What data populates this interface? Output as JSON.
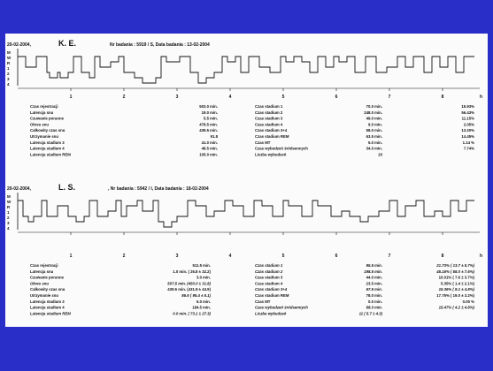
{
  "colors": {
    "background": "#2a2ec8",
    "paper": "#fbfbfb",
    "ink": "#111111"
  },
  "chart_data": [
    {
      "type": "line",
      "date": "20-02-2004,",
      "patient": "K. E.",
      "exam": "Nr badania : 5919 / S, Data badania : 13-02-2004",
      "y_labels": [
        "M",
        "W",
        "R",
        "1",
        "2",
        "3",
        "4"
      ],
      "x_ticks": [
        "1",
        "2",
        "3",
        "4",
        "5",
        "6",
        "7",
        "8"
      ],
      "xunit": "h",
      "xlim": [
        0,
        8.7
      ],
      "stage_levels": [
        "M",
        "W",
        "R",
        "1",
        "2",
        "3",
        "4"
      ],
      "hypnogram": [
        [
          0.0,
          "W"
        ],
        [
          0.15,
          "1"
        ],
        [
          0.35,
          "W"
        ],
        [
          0.55,
          "2"
        ],
        [
          0.6,
          "3"
        ],
        [
          0.75,
          "2"
        ],
        [
          0.8,
          "3"
        ],
        [
          0.95,
          "2"
        ],
        [
          1.05,
          "W"
        ],
        [
          1.2,
          "2"
        ],
        [
          1.35,
          "3"
        ],
        [
          1.45,
          "W"
        ],
        [
          1.55,
          "1"
        ],
        [
          1.75,
          "R"
        ],
        [
          1.9,
          "W"
        ],
        [
          2.0,
          "2"
        ],
        [
          2.2,
          "3"
        ],
        [
          2.35,
          "4"
        ],
        [
          2.6,
          "3"
        ],
        [
          2.7,
          "W"
        ],
        [
          2.8,
          "R"
        ],
        [
          3.05,
          "W"
        ],
        [
          3.25,
          "2"
        ],
        [
          3.4,
          "4"
        ],
        [
          3.55,
          "3"
        ],
        [
          3.7,
          "2"
        ],
        [
          3.85,
          "W"
        ],
        [
          3.95,
          "R"
        ],
        [
          4.1,
          "W"
        ],
        [
          4.2,
          "2"
        ],
        [
          4.35,
          "W"
        ],
        [
          4.55,
          "1"
        ],
        [
          4.75,
          "2"
        ],
        [
          4.95,
          "W"
        ],
        [
          5.05,
          "R"
        ],
        [
          5.2,
          "W"
        ],
        [
          5.35,
          "R"
        ],
        [
          5.5,
          "2"
        ],
        [
          5.65,
          "W"
        ],
        [
          5.8,
          "1"
        ],
        [
          5.95,
          "W"
        ],
        [
          6.05,
          "R"
        ],
        [
          6.2,
          "W"
        ],
        [
          6.35,
          "2"
        ],
        [
          6.55,
          "W"
        ],
        [
          6.75,
          "2"
        ],
        [
          6.95,
          "1"
        ],
        [
          7.15,
          "W"
        ],
        [
          7.3,
          "1"
        ],
        [
          7.45,
          "W"
        ],
        [
          7.65,
          "2"
        ],
        [
          7.8,
          "W"
        ],
        [
          7.95,
          "1"
        ],
        [
          8.1,
          "W"
        ],
        [
          8.25,
          "2"
        ],
        [
          8.4,
          "W"
        ],
        [
          8.6,
          "W"
        ]
      ],
      "stats_left": [
        [
          "Czas rejestracji",
          "503.0 min."
        ],
        [
          "Latencja snu",
          "19.0 min."
        ],
        [
          "Czuwanie poranne",
          "5.5 min."
        ],
        [
          "Okres snu",
          "478.5 min."
        ],
        [
          "Całkowity czas snu",
          "439.5 min."
        ],
        [
          "Utrzymanie snu",
          "91.8"
        ],
        [
          "Latencja stadium 3",
          "41.0 min."
        ],
        [
          "Latencja stadium 4",
          "48.5 min."
        ],
        [
          "Latencja stadium REM",
          "105.0 min."
        ]
      ],
      "stats_right": [
        [
          "Czas stadium 1",
          "70.0 min.",
          "15.93%"
        ],
        [
          "Czas stadium 2",
          "248.0 min.",
          "56.43%"
        ],
        [
          "Czas stadium 3",
          "49.0 min.",
          "11.15%"
        ],
        [
          "Czas stadium 4",
          "9.0 min.",
          "2.05%"
        ],
        [
          "Czas stadium 3+4",
          "58.0 min.",
          "13.20%"
        ],
        [
          "Czas stadium REM",
          "63.5 min.",
          "14.45%"
        ],
        [
          "Czas MT",
          "5.0 min.",
          "1.14 %"
        ],
        [
          "Czas wybudzeń śródsennych",
          "34.0 min.",
          "7.74%"
        ],
        [
          "Liczba wybudzeń",
          "20",
          ""
        ]
      ]
    },
    {
      "type": "line",
      "date": "20-02-2004,",
      "patient": "L. S.",
      "exam": ", Nr badania : 5942 / I, Data badania : 18-02-2004",
      "y_labels": [
        "M",
        "W",
        "R",
        "1",
        "2",
        "3",
        "4"
      ],
      "x_ticks": [
        "1",
        "2",
        "3",
        "4",
        "5",
        "6",
        "7",
        "8"
      ],
      "xunit": "h",
      "xlim": [
        0,
        8.7
      ],
      "stage_levels": [
        "M",
        "W",
        "R",
        "1",
        "2",
        "3",
        "4"
      ],
      "hypnogram": [
        [
          0.0,
          "W"
        ],
        [
          0.1,
          "2"
        ],
        [
          0.2,
          "3"
        ],
        [
          0.3,
          "2"
        ],
        [
          0.45,
          "W"
        ],
        [
          0.55,
          "2"
        ],
        [
          0.75,
          "R"
        ],
        [
          0.95,
          "2"
        ],
        [
          1.1,
          "3"
        ],
        [
          1.25,
          "2"
        ],
        [
          1.35,
          "W"
        ],
        [
          1.5,
          "2"
        ],
        [
          1.7,
          "1"
        ],
        [
          1.85,
          "W"
        ],
        [
          1.95,
          "2"
        ],
        [
          2.05,
          "R"
        ],
        [
          2.25,
          "W"
        ],
        [
          2.35,
          "1"
        ],
        [
          2.55,
          "W"
        ],
        [
          2.65,
          "3"
        ],
        [
          2.75,
          "4"
        ],
        [
          2.9,
          "3"
        ],
        [
          3.0,
          "2"
        ],
        [
          3.2,
          "W"
        ],
        [
          3.35,
          "R"
        ],
        [
          3.55,
          "2"
        ],
        [
          3.7,
          "1"
        ],
        [
          3.9,
          "W"
        ],
        [
          4.05,
          "R"
        ],
        [
          4.25,
          "2"
        ],
        [
          4.45,
          "W"
        ],
        [
          4.6,
          "R"
        ],
        [
          4.8,
          "2"
        ],
        [
          5.0,
          "W"
        ],
        [
          5.1,
          "R"
        ],
        [
          5.35,
          "2"
        ],
        [
          5.55,
          "W"
        ],
        [
          5.65,
          "R"
        ],
        [
          5.9,
          "2"
        ],
        [
          6.1,
          "1"
        ],
        [
          6.25,
          "2"
        ],
        [
          6.45,
          "3"
        ],
        [
          6.6,
          "2"
        ],
        [
          6.8,
          "1"
        ],
        [
          7.0,
          "W"
        ],
        [
          7.15,
          "2"
        ],
        [
          7.3,
          "R"
        ],
        [
          7.5,
          "W"
        ],
        [
          7.65,
          "2"
        ],
        [
          7.85,
          "1"
        ],
        [
          8.0,
          "2"
        ],
        [
          8.15,
          "W"
        ],
        [
          8.3,
          "1"
        ],
        [
          8.45,
          "W"
        ],
        [
          8.6,
          "W"
        ]
      ],
      "stats_left": [
        [
          "Czas rejestracji",
          "511.5 min.",
          false
        ],
        [
          "Latencja snu",
          "1.0 min. ( 26.8 ± 32.2)",
          false
        ],
        [
          "Czuwanie poranne",
          "3.0 min.",
          false
        ],
        [
          "Okres snu",
          "507.5 min. (450.0 ± 31.8)",
          true
        ],
        [
          "Całkowity czas snu",
          "439.5 min. (431.8 ± 44.9)",
          false
        ],
        [
          "Utrzymanie snu",
          "86.6 ( 95.4 ± 5.1)",
          true
        ],
        [
          "Latencja stadium 3",
          "6.0 min.",
          false
        ],
        [
          "Latencja stadium 4",
          "184.5 min.",
          false
        ],
        [
          "Latencja stadium REM",
          "0.0 min. ( 73.1 ± 27.3)",
          true
        ]
      ],
      "stats_right": [
        [
          "Czas stadium 1",
          "95.5 min.",
          "21.73% ( 13.7 ± 5.7%)",
          true
        ],
        [
          "Czas stadium 2",
          "198.5 min.",
          "45.16% ( 58.0 ± 7.6%)",
          true
        ],
        [
          "Czas stadium 3",
          "44.0 min.",
          "10.01% ( 7.6 ± 3.7%)",
          false
        ],
        [
          "Czas stadium 4",
          "23.5 min.",
          "5.35% ( 1.4 ± 2.1%)",
          false
        ],
        [
          "Czas stadium 3+4",
          "67.5 min.",
          "15.36% ( 8.1 ± 4.8%)",
          true
        ],
        [
          "Czas stadium REM",
          "78.0 min.",
          "17.75% ( 19.0 ± 3.2%)",
          false
        ],
        [
          "Czas MT",
          "0.0 min.",
          "0.00 %",
          false
        ],
        [
          "Czas wybudzeń śródsennych",
          "68.0 min.",
          "15.47% ( 4.2 ± 4.8%)",
          true
        ],
        [
          "Liczba wybudzeń",
          "11 ( 5.7 ± 4.3)",
          "",
          true
        ]
      ]
    }
  ]
}
